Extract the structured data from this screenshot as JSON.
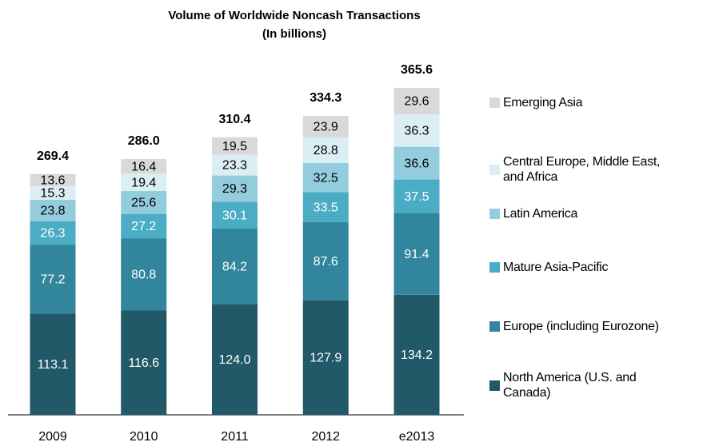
{
  "chart_data": {
    "type": "stacked_bar",
    "title": "Volume of Worldwide Noncash Transactions",
    "subtitle": "(In billions)",
    "categories": [
      "2009",
      "2010",
      "2011",
      "2012",
      "e2013"
    ],
    "series": [
      {
        "name": "North America (U.S. and Canada)",
        "color": "#215968",
        "values": [
          113.1,
          116.6,
          124.0,
          127.9,
          134.2
        ],
        "value_labels": [
          "113.1",
          "116.6",
          "124.0",
          "127.9",
          "134.2"
        ]
      },
      {
        "name": "Europe (including Eurozone)",
        "color": "#31859c",
        "values": [
          77.2,
          80.8,
          84.2,
          87.6,
          91.4
        ]
      },
      {
        "name": "Mature Asia-Pacific",
        "color": "#4bacc6",
        "values": [
          26.3,
          27.2,
          30.1,
          33.5,
          37.5
        ]
      },
      {
        "name": "Latin America",
        "color": "#93cddd",
        "values": [
          23.8,
          25.6,
          29.3,
          32.5,
          36.6
        ]
      },
      {
        "name": "Central Europe, Middle East, and Africa",
        "color": "#dbeef4",
        "values": [
          15.3,
          19.4,
          23.3,
          28.8,
          36.3
        ]
      },
      {
        "name": "Emerging Asia",
        "color": "#d9d9d9",
        "values": [
          13.6,
          16.4,
          19.5,
          23.9,
          29.6
        ]
      }
    ],
    "totals": {
      "values": [
        269.4,
        286.0,
        310.4,
        334.3,
        365.6
      ],
      "value_labels": [
        "269.4",
        "286.0",
        "310.4",
        "334.3",
        "365.6"
      ]
    }
  }
}
